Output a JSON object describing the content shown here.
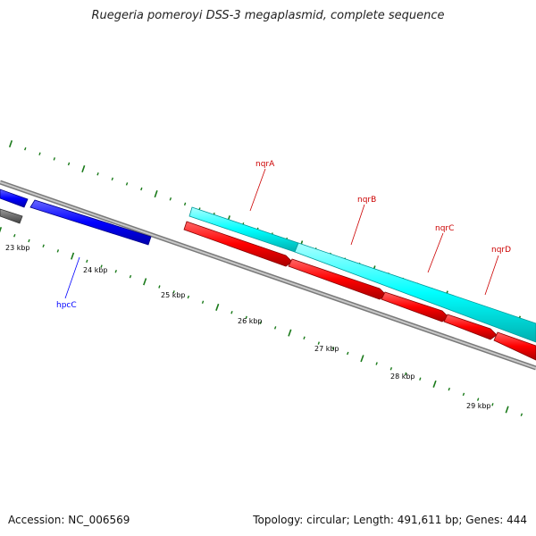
{
  "title": "Ruegeria pomeroyi DSS-3 megaplasmid, complete sequence",
  "footer": {
    "accession_label": "Accession:",
    "accession": "NC_006569",
    "topology_label": "Topology:",
    "topology": "circular",
    "length_label": "Length:",
    "length": "491,611 bp",
    "genes_label": "Genes:",
    "genes": "444"
  },
  "scale_ticks": [
    "23 kbp",
    "24 kbp",
    "25 kbp",
    "26 kbp",
    "27 kbp",
    "28 kbp",
    "29 kbp"
  ],
  "genes": [
    {
      "name": "hpcC",
      "strand": "reverse",
      "color": "#0000ff"
    },
    {
      "name": "nqrA",
      "strand": "forward",
      "color": "#ff0000",
      "label_color": "#cc0000"
    },
    {
      "name": "nqrB",
      "strand": "forward",
      "color": "#ff0000",
      "label_color": "#cc0000"
    },
    {
      "name": "nqrC",
      "strand": "forward",
      "color": "#ff0000",
      "label_color": "#cc0000"
    },
    {
      "name": "nqrD",
      "strand": "forward",
      "color": "#ff0000",
      "label_color": "#cc0000"
    }
  ],
  "colors": {
    "backbone": "#8c8c8c",
    "cds_forward": "#ff0000",
    "cds_reverse": "#0000ff",
    "cog_track": "#00ffff",
    "other_feature": "#808080",
    "tick": "#1a7a1a"
  }
}
